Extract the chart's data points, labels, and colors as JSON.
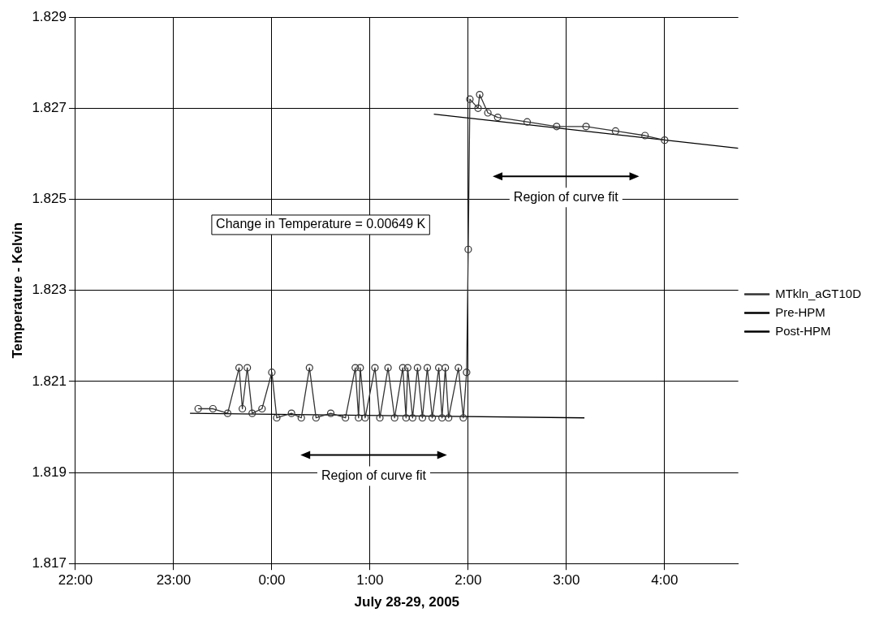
{
  "chart_data": {
    "type": "line",
    "xlabel": "July 28-29, 2005",
    "ylabel": "Temperature - Kelvin",
    "xlim": [
      "2005-07-28T22:00",
      "2005-07-29T04:45"
    ],
    "ylim": [
      1.817,
      1.829
    ],
    "xticks": [
      {
        "value": "2005-07-28T22:00",
        "label": "22:00"
      },
      {
        "value": "2005-07-28T23:00",
        "label": "23:00"
      },
      {
        "value": "2005-07-29T00:00",
        "label": "0:00"
      },
      {
        "value": "2005-07-29T01:00",
        "label": "1:00"
      },
      {
        "value": "2005-07-29T02:00",
        "label": "2:00"
      },
      {
        "value": "2005-07-29T03:00",
        "label": "3:00"
      },
      {
        "value": "2005-07-29T04:00",
        "label": "4:00"
      }
    ],
    "yticks": [
      1.817,
      1.819,
      1.821,
      1.823,
      1.825,
      1.827,
      1.829
    ],
    "grid": true,
    "legend": "right",
    "series": [
      {
        "name": "MTkln_aGT10D",
        "color": "#333333",
        "marker": "circle",
        "x": [
          "2005-07-28T23:15",
          "2005-07-28T23:24",
          "2005-07-28T23:33",
          "2005-07-28T23:40",
          "2005-07-28T23:42",
          "2005-07-28T23:45",
          "2005-07-28T23:48",
          "2005-07-28T23:54",
          "2005-07-29T00:00",
          "2005-07-29T00:03",
          "2005-07-29T00:12",
          "2005-07-29T00:18",
          "2005-07-29T00:23",
          "2005-07-29T00:27",
          "2005-07-29T00:36",
          "2005-07-29T00:45",
          "2005-07-29T00:51",
          "2005-07-29T00:53",
          "2005-07-29T00:54",
          "2005-07-29T00:57",
          "2005-07-29T01:03",
          "2005-07-29T01:06",
          "2005-07-29T01:11",
          "2005-07-29T01:15",
          "2005-07-29T01:20",
          "2005-07-29T01:22",
          "2005-07-29T01:23",
          "2005-07-29T01:26",
          "2005-07-29T01:29",
          "2005-07-29T01:32",
          "2005-07-29T01:35",
          "2005-07-29T01:38",
          "2005-07-29T01:42",
          "2005-07-29T01:44",
          "2005-07-29T01:46",
          "2005-07-29T01:48",
          "2005-07-29T01:54",
          "2005-07-29T01:57",
          "2005-07-29T01:59",
          "2005-07-29T02:00",
          "2005-07-29T02:01",
          "2005-07-29T02:06",
          "2005-07-29T02:07",
          "2005-07-29T02:12",
          "2005-07-29T02:18",
          "2005-07-29T02:36",
          "2005-07-29T02:54",
          "2005-07-29T03:12",
          "2005-07-29T03:30",
          "2005-07-29T03:48",
          "2005-07-29T04:00"
        ],
        "values": [
          1.8204,
          1.8204,
          1.8203,
          1.8213,
          1.8204,
          1.8213,
          1.8203,
          1.8204,
          1.8212,
          1.8202,
          1.8203,
          1.8202,
          1.8213,
          1.8202,
          1.8203,
          1.8202,
          1.8213,
          1.8202,
          1.8213,
          1.8202,
          1.8213,
          1.8202,
          1.8213,
          1.8202,
          1.8213,
          1.8202,
          1.8213,
          1.8202,
          1.8213,
          1.8202,
          1.8213,
          1.8202,
          1.8213,
          1.8202,
          1.8213,
          1.8202,
          1.8213,
          1.8202,
          1.8212,
          1.8239,
          1.8272,
          1.827,
          1.8273,
          1.8269,
          1.8268,
          1.8267,
          1.8266,
          1.8266,
          1.8265,
          1.8264,
          1.8263
        ]
      },
      {
        "name": "Pre-HPM",
        "color": "#000000",
        "marker": "none",
        "x": [
          "2005-07-28T23:10",
          "2005-07-29T03:11"
        ],
        "values": [
          1.8203,
          1.8202
        ]
      },
      {
        "name": "Post-HPM",
        "color": "#000000",
        "marker": "none",
        "x": [
          "2005-07-29T01:39",
          "2005-07-29T04:45"
        ],
        "values": [
          1.82687,
          1.82612
        ]
      }
    ],
    "annotations": [
      "Change in Temperature = 0.00649 K",
      "Region of curve fit",
      "Region of curve fit"
    ]
  }
}
